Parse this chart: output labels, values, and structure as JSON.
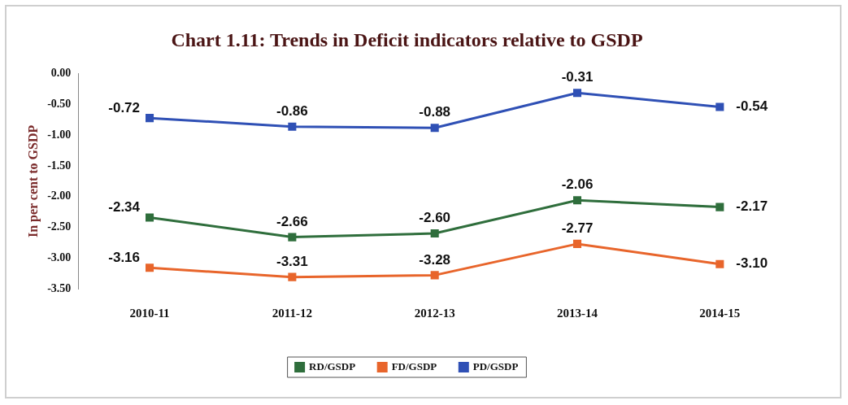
{
  "chart_data": {
    "type": "line",
    "title": "Chart 1.11: Trends in Deficit indicators relative to GSDP",
    "ylabel": "In per cent to GSDP",
    "categories": [
      "2010-11",
      "2011-12",
      "2012-13",
      "2013-14",
      "2014-15"
    ],
    "series": [
      {
        "name": "RD/GSDP",
        "color": "#2f6e3c",
        "values": [
          -2.34,
          -2.66,
          -2.6,
          -2.06,
          -2.17
        ],
        "value_labels": [
          "-2.34",
          "-2.66",
          "-2.60",
          "-2.06",
          "-2.17"
        ]
      },
      {
        "name": "FD/GSDP",
        "color": "#e8652b",
        "values": [
          -3.16,
          -3.31,
          -3.28,
          -2.77,
          -3.1
        ],
        "value_labels": [
          "-3.16",
          "-3.31",
          "-3.28",
          "-2.77",
          "-3.10"
        ]
      },
      {
        "name": "PD/GSDP",
        "color": "#2f50b5",
        "values": [
          -0.72,
          -0.86,
          -0.88,
          -0.31,
          -0.54
        ],
        "value_labels": [
          "-0.72",
          "-0.86",
          "-0.88",
          "-0.31",
          "-0.54"
        ]
      }
    ],
    "ylim": [
      -3.5,
      0
    ],
    "yticks": [
      {
        "value": 0,
        "label": "0.00"
      },
      {
        "value": -0.5,
        "label": "-0.50"
      },
      {
        "value": -1,
        "label": "-1.00"
      },
      {
        "value": -1.5,
        "label": "-1.50"
      },
      {
        "value": -2,
        "label": "-2.00"
      },
      {
        "value": -2.5,
        "label": "-2.50"
      },
      {
        "value": -3,
        "label": "-3.00"
      },
      {
        "value": -3.5,
        "label": "-3.50"
      }
    ],
    "grid": false,
    "legend": "bottom",
    "marker": "square",
    "line_style": "solid"
  }
}
